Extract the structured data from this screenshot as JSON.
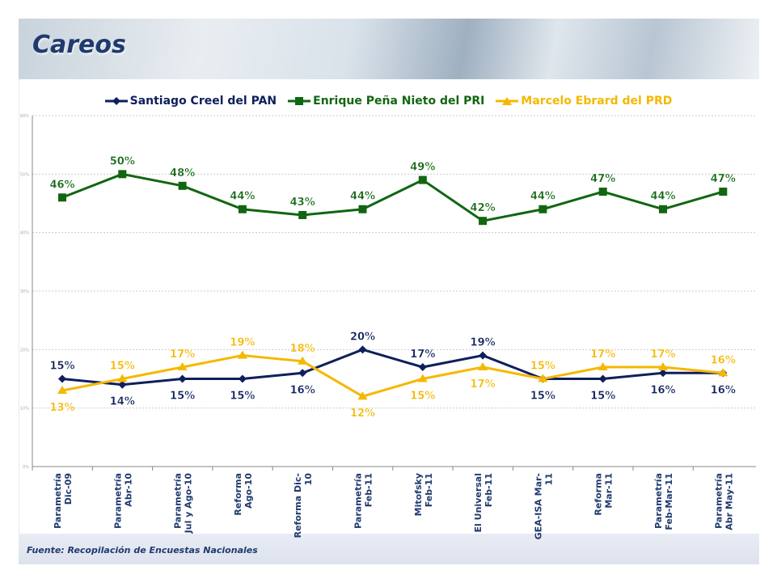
{
  "header": {
    "title": "Careos"
  },
  "footer": {
    "source": "Fuente: Recopilación de Encuestas Nacionales"
  },
  "chart_data": {
    "type": "line",
    "title": "",
    "xlabel": "",
    "ylabel": "",
    "ylim": [
      0,
      60
    ],
    "yticks": [
      "0%",
      "10%",
      "20%",
      "30%",
      "40%",
      "50%",
      "60%"
    ],
    "grid": true,
    "legend_position": "top",
    "categories": [
      [
        "Parametría",
        "Dic-09"
      ],
      [
        "Parametría",
        "Abr-10"
      ],
      [
        "Parametría",
        "Jul y Ago-10"
      ],
      [
        "Reforma",
        "Ago-10"
      ],
      [
        "Reforma Dic-",
        "10"
      ],
      [
        "Parametría",
        "Feb-11"
      ],
      [
        "Mitofsky",
        "Feb-11"
      ],
      [
        "El Universal",
        "Feb-11"
      ],
      [
        "GEA-ISA Mar-",
        "11"
      ],
      [
        "Reforma",
        "Mar-11"
      ],
      [
        "Parametría",
        "Feb-Mar-11"
      ],
      [
        "Parametría",
        "Abr May-11"
      ]
    ],
    "series": [
      {
        "name": "Santiago Creel del PAN",
        "color": "#0f1f5c",
        "marker": "diamond",
        "values": [
          15,
          14,
          15,
          15,
          16,
          20,
          17,
          19,
          15,
          15,
          16,
          16
        ]
      },
      {
        "name": "Enrique Peña Nieto del PRI",
        "color": "#116611",
        "marker": "square",
        "values": [
          46,
          50,
          48,
          44,
          43,
          44,
          49,
          42,
          44,
          47,
          44,
          47
        ]
      },
      {
        "name": "Marcelo Ebrard del PRD",
        "color": "#f5b800",
        "marker": "triangle",
        "values": [
          13,
          15,
          17,
          19,
          18,
          12,
          15,
          17,
          15,
          17,
          17,
          16
        ]
      }
    ]
  }
}
